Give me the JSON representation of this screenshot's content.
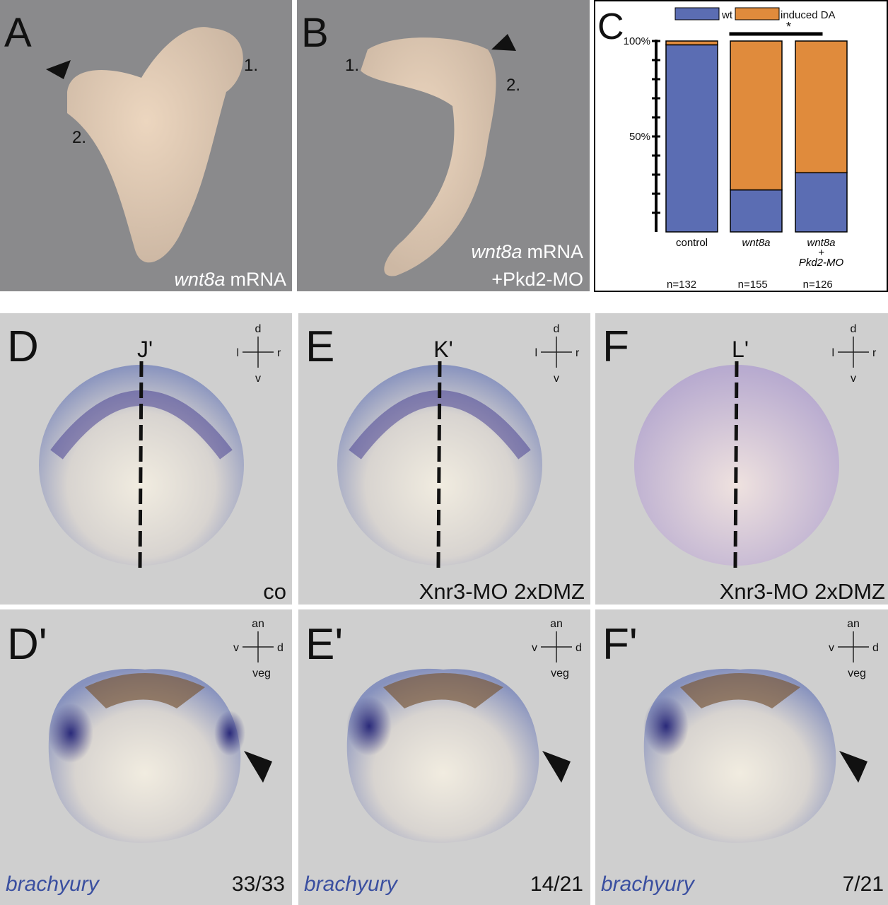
{
  "panels_top": [
    {
      "letter": "A",
      "caption_italic": "wnt8a",
      "caption": "mRNA",
      "markers": [
        "1.",
        "2."
      ]
    },
    {
      "letter": "B",
      "caption_italic": "wnt8a",
      "caption": "mRNA",
      "caption_line2": "+Pkd2-MO",
      "markers": [
        "1.",
        "2."
      ]
    }
  ],
  "chart_panel_letter": "C",
  "chart_data": {
    "type": "stacked-bar",
    "categories": [
      "control",
      "wnt8a",
      "wnt8a\n+\nPkd2-MO"
    ],
    "sample_sizes": [
      "n=132",
      "n=155",
      "n=126"
    ],
    "series": [
      {
        "name": "wt",
        "color": "#5b6db3",
        "values": [
          98,
          22,
          31
        ]
      },
      {
        "name": "induced DA",
        "color": "#e08b3c",
        "values": [
          2,
          78,
          69
        ]
      }
    ],
    "ylim": [
      0,
      100
    ],
    "yticks": [
      {
        "value": 100,
        "label": "100%"
      },
      {
        "value": 50,
        "label": "50%"
      }
    ],
    "minor_yticks": [
      10,
      20,
      30,
      40,
      60,
      70,
      80,
      90
    ],
    "significance": {
      "between": [
        1,
        2
      ],
      "label": "*"
    }
  },
  "panels_row2": [
    {
      "letter": "D",
      "section": "J'",
      "compass": [
        "d",
        "l",
        "r",
        "v"
      ],
      "caption": "co"
    },
    {
      "letter": "E",
      "section": "K'",
      "compass": [
        "d",
        "l",
        "r",
        "v"
      ],
      "caption": "Xnr3-MO 2xDMZ"
    },
    {
      "letter": "F",
      "section": "L'",
      "compass": [
        "d",
        "l",
        "r",
        "v"
      ],
      "caption": "Xnr3-MO 2xDMZ"
    }
  ],
  "panels_row3": [
    {
      "letter": "D'",
      "compass": [
        "an",
        "v",
        "d",
        "veg"
      ],
      "gene": "brachyury",
      "count": "33/33"
    },
    {
      "letter": "E'",
      "compass": [
        "an",
        "v",
        "d",
        "veg"
      ],
      "gene": "brachyury",
      "count": "14/21"
    },
    {
      "letter": "F'",
      "compass": [
        "an",
        "v",
        "d",
        "veg"
      ],
      "gene": "brachyury",
      "count": "7/21"
    }
  ]
}
